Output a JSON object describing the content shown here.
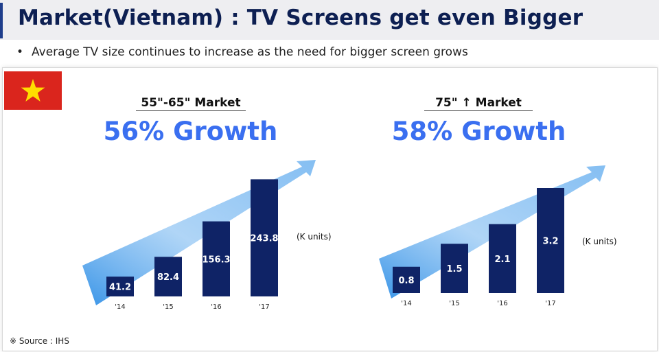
{
  "header": {
    "title": "Market(Vietnam) : TV Screens get even Bigger",
    "subtitle": "Average TV size continues to increase as the need for bigger screen grows",
    "bullet": "•"
  },
  "flag": {
    "name": "vietnam-flag",
    "colors": {
      "field": "#da251d",
      "star": "#ffde00"
    }
  },
  "colors": {
    "bar": "#0f2366",
    "growth_text": "#3a6ff0",
    "arrow": "#6fb3f0"
  },
  "chart_data": [
    {
      "type": "bar",
      "title": "55\"-65\" Market",
      "growth_label": "56% Growth",
      "categories": [
        "'14",
        "'15",
        "'16",
        "'17"
      ],
      "values": [
        41.2,
        82.4,
        156.3,
        243.8
      ],
      "value_labels": [
        "41.2",
        "82.4",
        "156.3",
        "243.8"
      ],
      "unit": "(K units)",
      "ylim": [
        0,
        250
      ]
    },
    {
      "type": "bar",
      "title": "75\" ↑ Market",
      "growth_label": "58% Growth",
      "categories": [
        "'14",
        "'15",
        "'16",
        "'17"
      ],
      "values": [
        0.8,
        1.5,
        2.1,
        3.2
      ],
      "value_labels": [
        "0.8",
        "1.5",
        "2.1",
        "3.2"
      ],
      "unit": "(K units)",
      "ylim": [
        0,
        3.2
      ]
    }
  ],
  "footer": {
    "source": "※ Source : IHS"
  }
}
